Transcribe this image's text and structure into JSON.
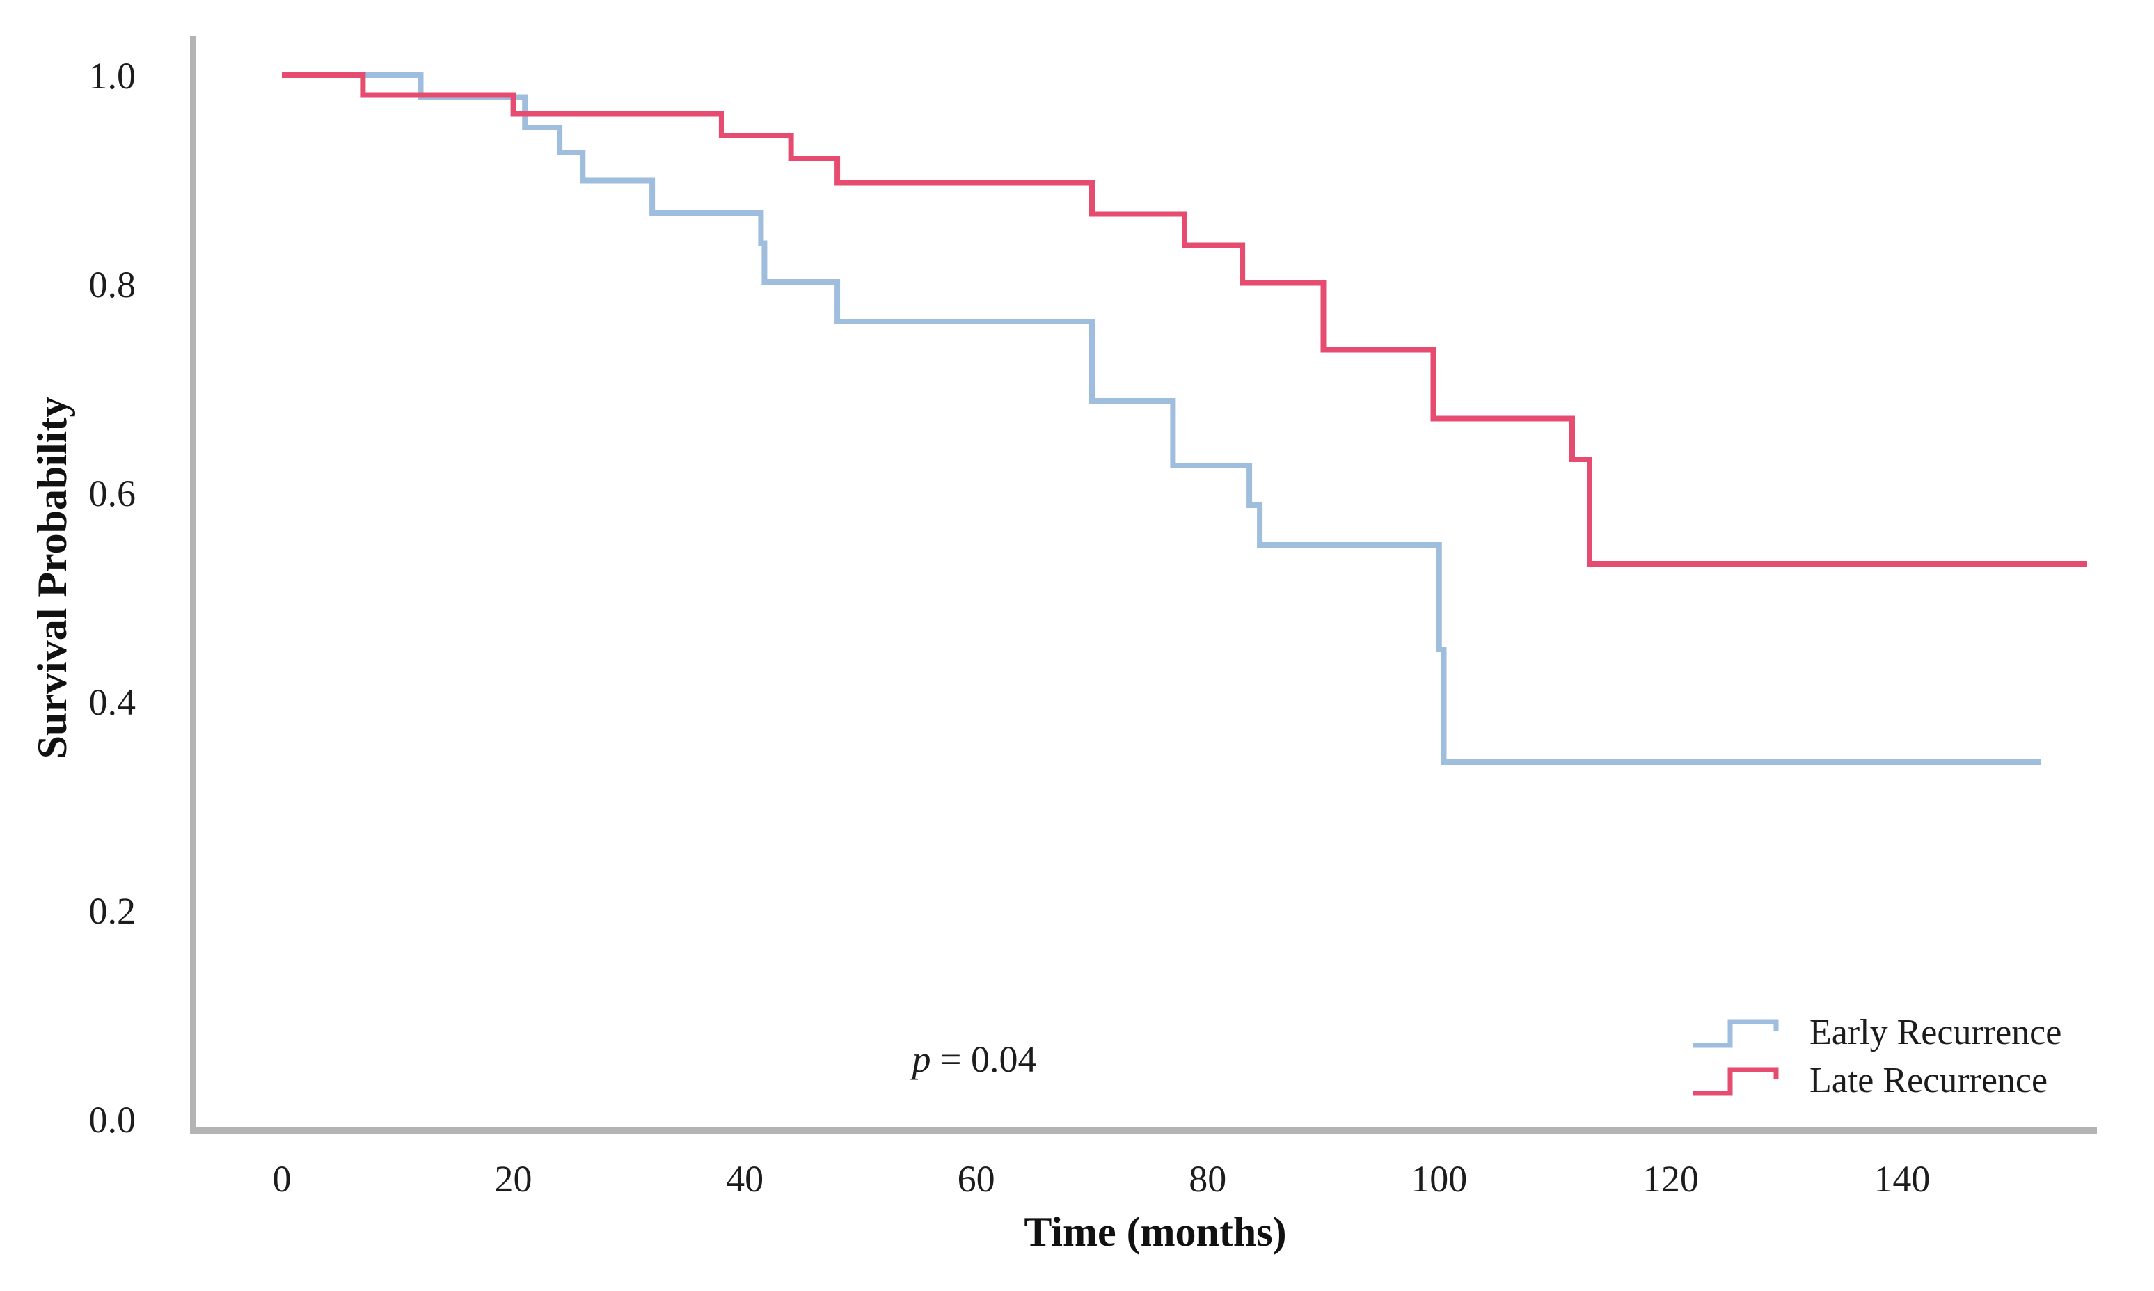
{
  "figure": {
    "background": "#ffffff",
    "y_axis": {
      "title": "Survival Probability",
      "ticks": [
        "1.0",
        "0.8",
        "0.6",
        "0.4",
        "0.2",
        "0.0"
      ],
      "tick_values": [
        1.0,
        0.8,
        0.6,
        0.4,
        0.2,
        0.0
      ]
    },
    "x_axis": {
      "title": "Time (months)",
      "ticks": [
        "0",
        "20",
        "40",
        "60",
        "80",
        "100",
        "120",
        "140"
      ],
      "tick_values": [
        0,
        20,
        40,
        60,
        80,
        100,
        120,
        140
      ]
    },
    "annotation": {
      "p_italic": "p",
      "p_rest": " = 0.04"
    },
    "legend": [
      {
        "label": "Early Recurrence",
        "color": "#9fbedd"
      },
      {
        "label": "Late Recurrence",
        "color": "#e64c70"
      }
    ]
  },
  "chart_data": {
    "type": "line",
    "subtype": "kaplan-meier-step",
    "title": "",
    "xlabel": "Time (months)",
    "ylabel": "Survival Probability",
    "xlim": [
      0,
      157
    ],
    "ylim": [
      0.0,
      1.0
    ],
    "x_ticks": [
      0,
      20,
      40,
      60,
      80,
      100,
      120,
      140
    ],
    "y_ticks": [
      1.0,
      0.8,
      0.6,
      0.4,
      0.2,
      0.0
    ],
    "grid": false,
    "legend_position": "bottom-right",
    "annotation_text": "p = 0.04",
    "series": [
      {
        "name": "Early Recurrence",
        "color": "#9fbedd",
        "stroke_width": 8,
        "end_time": 152,
        "steps": [
          [
            0,
            1.0
          ],
          [
            12,
            0.979
          ],
          [
            21,
            0.95
          ],
          [
            24,
            0.926
          ],
          [
            26,
            0.899
          ],
          [
            32,
            0.868
          ],
          [
            41.4,
            0.839
          ],
          [
            41.7,
            0.802
          ],
          [
            48,
            0.764
          ],
          [
            70,
            0.688
          ],
          [
            77,
            0.626
          ],
          [
            83.6,
            0.588
          ],
          [
            84.5,
            0.55
          ],
          [
            100,
            0.45
          ],
          [
            100.4,
            0.342
          ]
        ]
      },
      {
        "name": "Late Recurrence",
        "color": "#e64c70",
        "stroke_width": 8,
        "end_time": 156,
        "steps": [
          [
            0,
            1.0
          ],
          [
            7,
            0.981
          ],
          [
            20,
            0.963
          ],
          [
            38,
            0.942
          ],
          [
            44,
            0.92
          ],
          [
            48,
            0.897
          ],
          [
            70,
            0.867
          ],
          [
            78,
            0.837
          ],
          [
            83,
            0.801
          ],
          [
            90,
            0.737
          ],
          [
            99.5,
            0.671
          ],
          [
            111.5,
            0.632
          ],
          [
            113,
            0.532
          ]
        ]
      }
    ]
  }
}
